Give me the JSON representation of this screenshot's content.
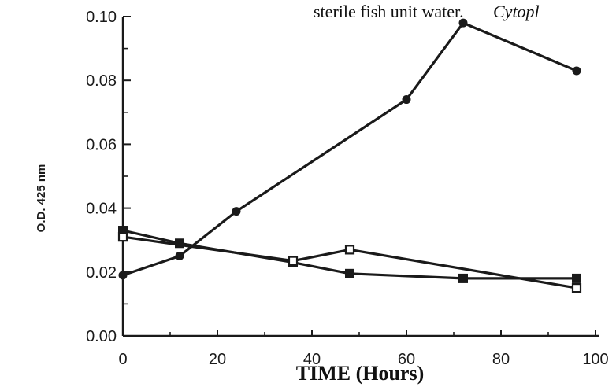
{
  "caption": {
    "text": "sterile fish unit water.",
    "italic": "Cytopl"
  },
  "chart_data": {
    "type": "line",
    "title": "",
    "xlabel": "TIME  (Hours)",
    "ylabel": "O.D. 425 nm",
    "xlim": [
      0,
      100
    ],
    "ylim": [
      0.0,
      0.1
    ],
    "xticks": [
      0,
      20,
      40,
      60,
      80,
      100
    ],
    "xtick_labels": [
      "0",
      "20",
      "40",
      "60",
      "80",
      "100"
    ],
    "yticks": [
      0.0,
      0.02,
      0.04,
      0.06,
      0.08,
      0.1
    ],
    "ytick_labels": [
      "0.00",
      "0.02",
      "0.04",
      "0.06",
      "0.08",
      "0.10"
    ],
    "grid": false,
    "series": [
      {
        "marker": "filled-circle",
        "color": "#1a1a1a",
        "x": [
          0,
          12,
          24,
          60,
          72,
          96
        ],
        "y": [
          0.019,
          0.025,
          0.039,
          0.074,
          0.098,
          0.083
        ]
      },
      {
        "marker": "filled-square",
        "color": "#1a1a1a",
        "x": [
          0,
          12,
          36,
          48,
          72,
          96
        ],
        "y": [
          0.033,
          0.029,
          0.023,
          0.0195,
          0.018,
          0.018
        ]
      },
      {
        "marker": "open-square",
        "color": "#1a1a1a",
        "x": [
          0,
          36,
          48,
          96
        ],
        "y": [
          0.031,
          0.0235,
          0.027,
          0.015
        ]
      }
    ]
  }
}
